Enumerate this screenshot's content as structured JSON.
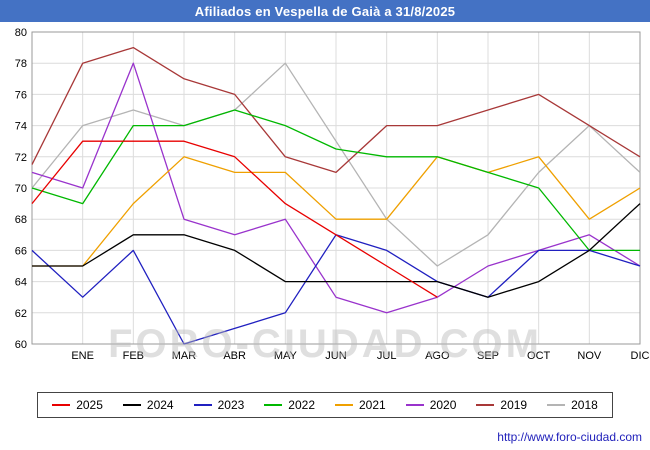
{
  "title": "Afiliados en Vespella de Gaià a 31/8/2025",
  "watermark": "FORO-CIUDAD.COM",
  "footer": {
    "url": "http://www.foro-ciudad.com"
  },
  "chart_data": {
    "type": "line",
    "title": "Afiliados en Vespella de Gaià a 31/8/2025",
    "categories": [
      "ENE",
      "FEB",
      "MAR",
      "ABR",
      "MAY",
      "JUN",
      "JUL",
      "AGO",
      "SEP",
      "OCT",
      "NOV",
      "DIC"
    ],
    "ylim": [
      60,
      80
    ],
    "ytick_step": 2,
    "grid": true,
    "legend_position": "bottom",
    "axis_note": "each series has an extra starting value at the left axis edge before ENE",
    "series": [
      {
        "name": "2025",
        "color": "#e80000",
        "values": [
          69,
          73,
          73,
          73,
          72,
          69,
          67,
          65,
          63,
          null,
          null,
          null,
          null
        ]
      },
      {
        "name": "2024",
        "color": "#000000",
        "values": [
          65,
          65,
          67,
          67,
          66,
          64,
          64,
          64,
          64,
          63,
          64,
          66,
          69
        ]
      },
      {
        "name": "2023",
        "color": "#2020c0",
        "values": [
          66,
          63,
          66,
          60,
          61,
          62,
          67,
          66,
          64,
          63,
          66,
          66,
          65
        ]
      },
      {
        "name": "2022",
        "color": "#00b800",
        "values": [
          70,
          69,
          74,
          74,
          75,
          74,
          72.5,
          72,
          72,
          71,
          70,
          66,
          66
        ]
      },
      {
        "name": "2021",
        "color": "#efa000",
        "values": [
          65,
          65,
          69,
          72,
          71,
          71,
          68,
          68,
          72,
          71,
          72,
          68,
          70
        ]
      },
      {
        "name": "2020",
        "color": "#9933cc",
        "values": [
          71,
          70,
          78,
          68,
          67,
          68,
          63,
          62,
          63,
          65,
          66,
          67,
          65
        ]
      },
      {
        "name": "2019",
        "color": "#a83838",
        "values": [
          71.5,
          78,
          79,
          77,
          76,
          72,
          71,
          74,
          74,
          75,
          76,
          74,
          72
        ]
      },
      {
        "name": "2018",
        "color": "#b4b4b4",
        "values": [
          70,
          74,
          75,
          74,
          75,
          78,
          73,
          68,
          65,
          67,
          71,
          74,
          71
        ]
      }
    ]
  }
}
